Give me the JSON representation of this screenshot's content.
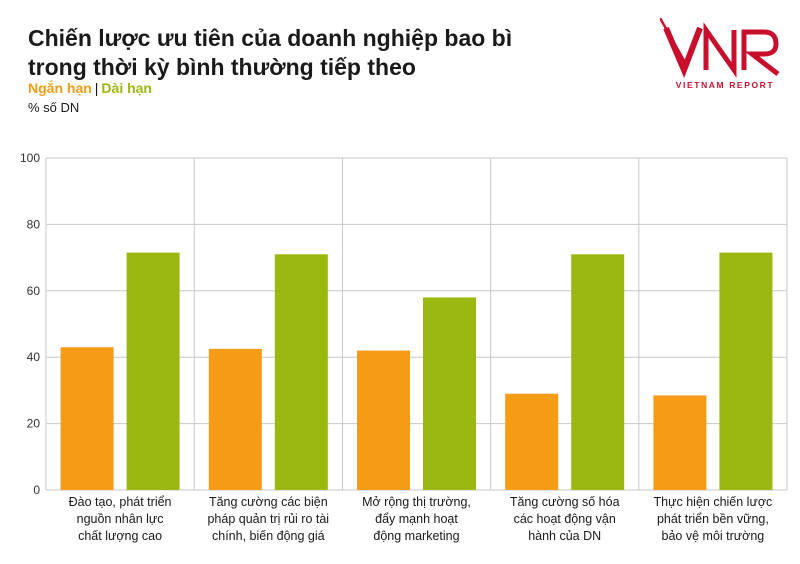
{
  "header": {
    "title_line1": "Chiến lược ưu tiên của doanh nghiệp bao bì",
    "title_line2": "trong thời kỳ bình thường tiếp theo",
    "unit": "% số DN"
  },
  "logo": {
    "mark": "VNR",
    "subtitle": "VIETNAM REPORT",
    "color": "#c8102e"
  },
  "colors": {
    "short_term": "#f59b16",
    "long_term": "#9ab810",
    "grid": "#c8c8c8"
  },
  "chart_data": {
    "type": "bar",
    "title": "Chiến lược ưu tiên của doanh nghiệp bao bì trong thời kỳ bình thường tiếp theo",
    "ylabel": "% số DN",
    "xlabel": "",
    "ylim": [
      0,
      100
    ],
    "yticks": [
      0,
      20,
      40,
      60,
      80,
      100
    ],
    "grid": true,
    "legend_position": "top-left",
    "categories": [
      [
        "Đào tạo, phát triển",
        "nguồn nhân lực",
        "chất lượng cao"
      ],
      [
        "Tăng cường các biện",
        "pháp quản trị rủi ro tài",
        "chính, biến động giá"
      ],
      [
        "Mở rộng thị trường,",
        "đẩy mạnh hoạt",
        "động marketing"
      ],
      [
        "Tăng cường số hóa",
        "các hoạt động vận",
        "hành của DN"
      ],
      [
        "Thực hiện chiến lược",
        "phát triển bền vững,",
        "bảo vệ môi trường"
      ]
    ],
    "series": [
      {
        "name": "Ngắn hạn",
        "color": "#f59b16",
        "values": [
          43,
          42.5,
          42,
          29,
          28.5
        ]
      },
      {
        "name": "Dài hạn",
        "color": "#9ab810",
        "values": [
          71.5,
          71,
          58,
          71,
          71.5
        ]
      }
    ]
  }
}
